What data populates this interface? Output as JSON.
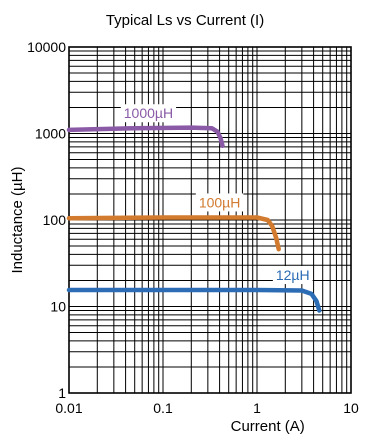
{
  "chart_data": {
    "type": "line",
    "title": "Typical Ls vs Current (I)",
    "xlabel": "Current (A)",
    "ylabel": "Inductance (µH)",
    "x_scale": "log",
    "y_scale": "log",
    "xlim": [
      0.01,
      10
    ],
    "ylim": [
      1,
      10000
    ],
    "x_ticks": [
      {
        "value": 0.01,
        "label": "0.01"
      },
      {
        "value": 0.1,
        "label": "0.1"
      },
      {
        "value": 1,
        "label": "1"
      },
      {
        "value": 10,
        "label": "10"
      }
    ],
    "y_ticks": [
      {
        "value": 1,
        "label": "1"
      },
      {
        "value": 10,
        "label": "10"
      },
      {
        "value": 100,
        "label": "100"
      },
      {
        "value": 1000,
        "label": "1000"
      },
      {
        "value": 10000,
        "label": "10000"
      }
    ],
    "grid": true,
    "series": [
      {
        "name": "1000µH",
        "color": "#8a5aa6",
        "x": [
          0.01,
          0.05,
          0.2,
          0.33,
          0.38,
          0.41,
          0.43
        ],
        "y": [
          1100,
          1150,
          1170,
          1150,
          1050,
          880,
          720
        ]
      },
      {
        "name": "100µH",
        "color": "#d27a2e",
        "x": [
          0.01,
          0.1,
          1.0,
          1.3,
          1.45,
          1.6,
          1.7
        ],
        "y": [
          105,
          107,
          107,
          100,
          85,
          62,
          46
        ]
      },
      {
        "name": "12µH",
        "color": "#2b6cb5",
        "x": [
          0.01,
          0.1,
          1.0,
          3.0,
          3.8,
          4.3,
          4.6
        ],
        "y": [
          15.5,
          15.5,
          15.5,
          15.3,
          14.0,
          11.5,
          9.0
        ]
      }
    ]
  }
}
